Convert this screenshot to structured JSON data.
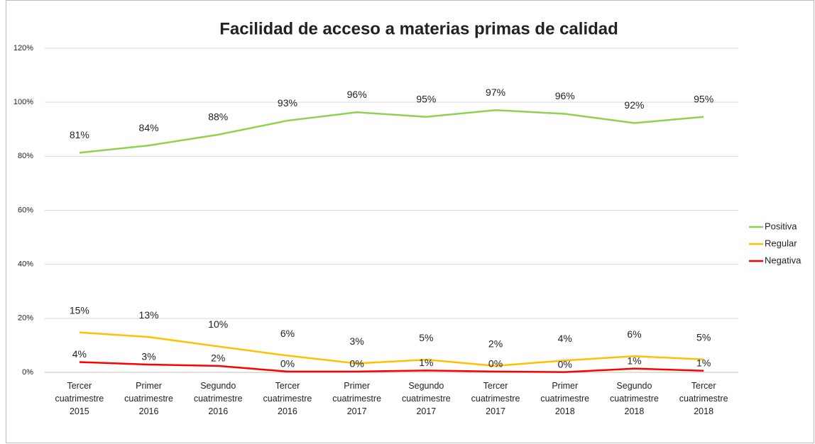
{
  "chart_data": {
    "type": "line",
    "title": "Facilidad de acceso a materias primas de calidad",
    "categories": [
      "Tercer cuatrimestre 2015",
      "Primer cuatrimestre 2016",
      "Segundo cuatrimestre 2016",
      "Tercer cuatrimestre 2016",
      "Primer cuatrimestre 2017",
      "Segundo cuatrimestre 2017",
      "Tercer cuatrimestre 2017",
      "Primer cuatrimestre 2018",
      "Segundo cuatrimestre 2018",
      "Tercer cuatrimestre 2018"
    ],
    "series": [
      {
        "name": "Positiva",
        "color": "#92d050",
        "values": [
          81.3,
          84.0,
          88.0,
          93.2,
          96.3,
          94.6,
          97.1,
          95.7,
          92.3,
          94.6
        ],
        "value_labels": [
          "81%",
          "84%",
          "88%",
          "93%",
          "96%",
          "95%",
          "97%",
          "96%",
          "92%",
          "95%"
        ]
      },
      {
        "name": "Regular",
        "color": "#ffc000",
        "values": [
          14.8,
          13.1,
          9.6,
          6.2,
          3.3,
          4.7,
          2.4,
          4.4,
          6.0,
          4.8
        ],
        "value_labels": [
          "15%",
          "13%",
          "10%",
          "6%",
          "3%",
          "5%",
          "2%",
          "4%",
          "6%",
          "5%"
        ]
      },
      {
        "name": "Negativa",
        "color": "#ff0000",
        "values": [
          3.8,
          2.9,
          2.4,
          0.3,
          0.3,
          0.7,
          0.3,
          0.1,
          1.4,
          0.6
        ],
        "value_labels": [
          "4%",
          "3%",
          "2%",
          "0%",
          "0%",
          "1%",
          "0%",
          "0%",
          "1%",
          "1%"
        ]
      }
    ],
    "ylim": [
      0,
      120
    ],
    "yticks": [
      {
        "value": 0,
        "label": "0%"
      },
      {
        "value": 20,
        "label": "20%"
      },
      {
        "value": 40,
        "label": "40%"
      },
      {
        "value": 60,
        "label": "60%"
      },
      {
        "value": 80,
        "label": "80%"
      },
      {
        "value": 100,
        "label": "100%"
      },
      {
        "value": 120,
        "label": "120%"
      }
    ],
    "grid": true,
    "legend": "right"
  }
}
